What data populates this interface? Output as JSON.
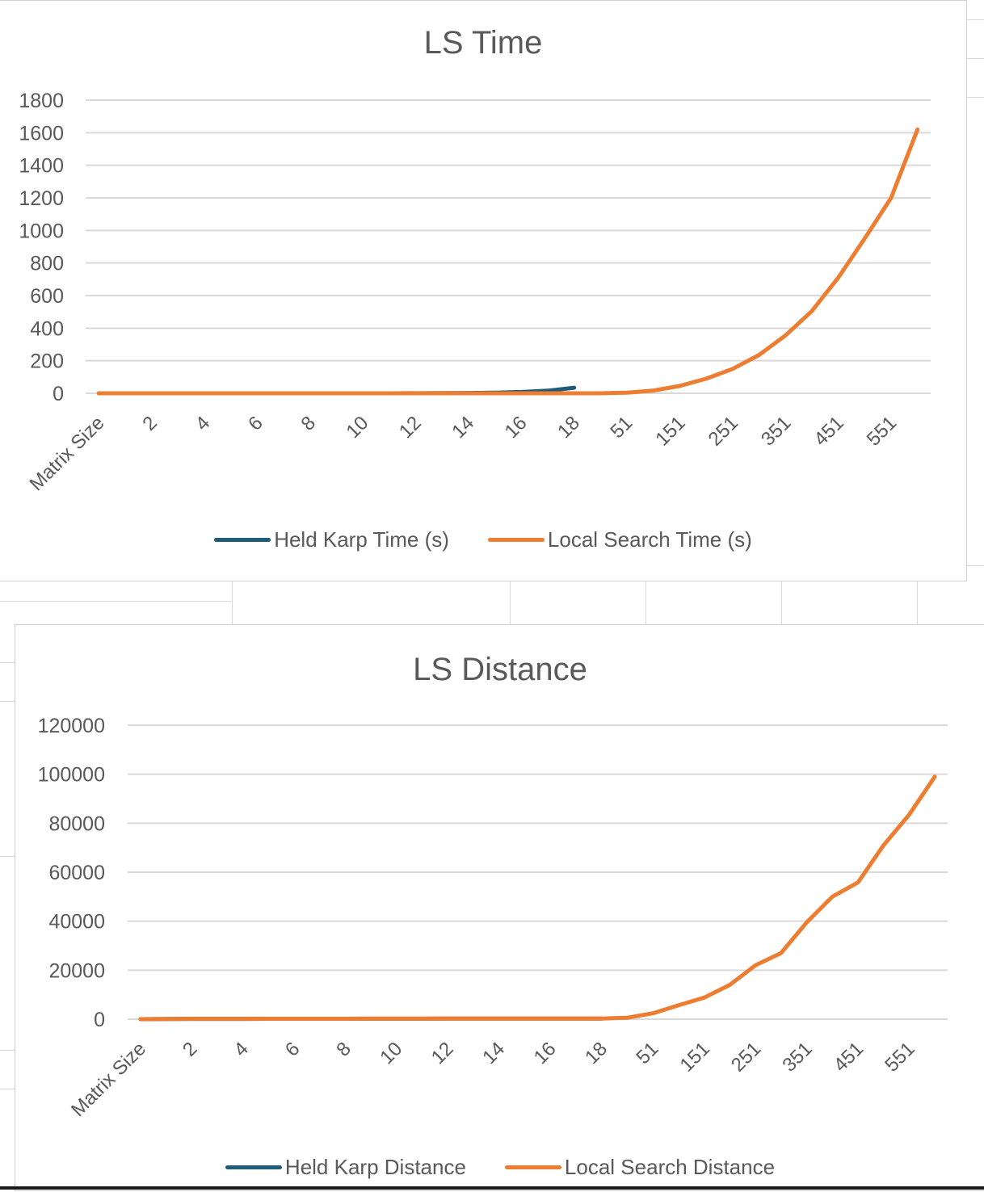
{
  "chart_data": [
    {
      "type": "line",
      "title": "LS Time",
      "xlabel": "",
      "ylabel": "",
      "ylim": [
        0,
        1800
      ],
      "yticks": [
        "1800",
        "1600",
        "1400",
        "1200",
        "1000",
        "800",
        "600",
        "400",
        "200",
        "0"
      ],
      "categories": [
        "Matrix Size",
        "1",
        "2",
        "3",
        "4",
        "5",
        "6",
        "7",
        "8",
        "9",
        "10",
        "11",
        "12",
        "13",
        "14",
        "15",
        "16",
        "17",
        "18",
        "1",
        "51",
        "101",
        "151",
        "201",
        "251",
        "301",
        "351",
        "401",
        "451",
        "501",
        "551",
        "601"
      ],
      "category_labels_shown": [
        "Matrix Size",
        "2",
        "4",
        "6",
        "8",
        "10",
        "12",
        "14",
        "16",
        "18",
        "51",
        "151",
        "251",
        "351",
        "451",
        "551"
      ],
      "grid": true,
      "legend_position": "bottom",
      "series": [
        {
          "name": "Held Karp Time (s)",
          "color": "#1f5c7a",
          "values": [
            0,
            0,
            0,
            0,
            0,
            0,
            0,
            0,
            0,
            0,
            0,
            0,
            0.3,
            0.8,
            2,
            4,
            8,
            16,
            34,
            null,
            null,
            null,
            null,
            null,
            null,
            null,
            null,
            null,
            null,
            null,
            null,
            null
          ]
        },
        {
          "name": "Local Search Time (s)",
          "color": "#ed7d31",
          "values": [
            0,
            0,
            0,
            0,
            0,
            0,
            0,
            0,
            0,
            0,
            0,
            0,
            0,
            0,
            0,
            0,
            0,
            0,
            0,
            0,
            4,
            17,
            45,
            90,
            150,
            235,
            355,
            505,
            710,
            950,
            1200,
            1620
          ]
        }
      ]
    },
    {
      "type": "line",
      "title": "LS Distance",
      "xlabel": "",
      "ylabel": "",
      "ylim": [
        0,
        120000
      ],
      "yticks": [
        "120000",
        "100000",
        "80000",
        "60000",
        "40000",
        "20000",
        "0"
      ],
      "categories": [
        "Matrix Size",
        "1",
        "2",
        "3",
        "4",
        "5",
        "6",
        "7",
        "8",
        "9",
        "10",
        "11",
        "12",
        "13",
        "14",
        "15",
        "16",
        "17",
        "18",
        "1",
        "51",
        "101",
        "151",
        "201",
        "251",
        "301",
        "351",
        "401",
        "451",
        "501",
        "551",
        "601"
      ],
      "category_labels_shown": [
        "Matrix Size",
        "2",
        "4",
        "6",
        "8",
        "10",
        "12",
        "14",
        "16",
        "18",
        "51",
        "151",
        "251",
        "351",
        "451",
        "551"
      ],
      "grid": true,
      "legend_position": "bottom",
      "series": [
        {
          "name": "Held Karp Distance",
          "color": "#1f5c7a",
          "values": [
            0,
            100,
            120,
            130,
            140,
            150,
            160,
            170,
            180,
            190,
            200,
            210,
            220,
            230,
            240,
            250,
            260,
            270,
            280,
            null,
            null,
            null,
            null,
            null,
            null,
            null,
            null,
            null,
            null,
            null,
            null,
            null
          ]
        },
        {
          "name": "Local Search Distance",
          "color": "#ed7d31",
          "values": [
            0,
            100,
            120,
            130,
            140,
            150,
            160,
            170,
            180,
            190,
            200,
            210,
            220,
            230,
            240,
            250,
            260,
            270,
            280,
            600,
            2400,
            5700,
            8800,
            14000,
            22000,
            27000,
            39500,
            50000,
            55800,
            71000,
            83500,
            99000
          ]
        }
      ]
    }
  ]
}
